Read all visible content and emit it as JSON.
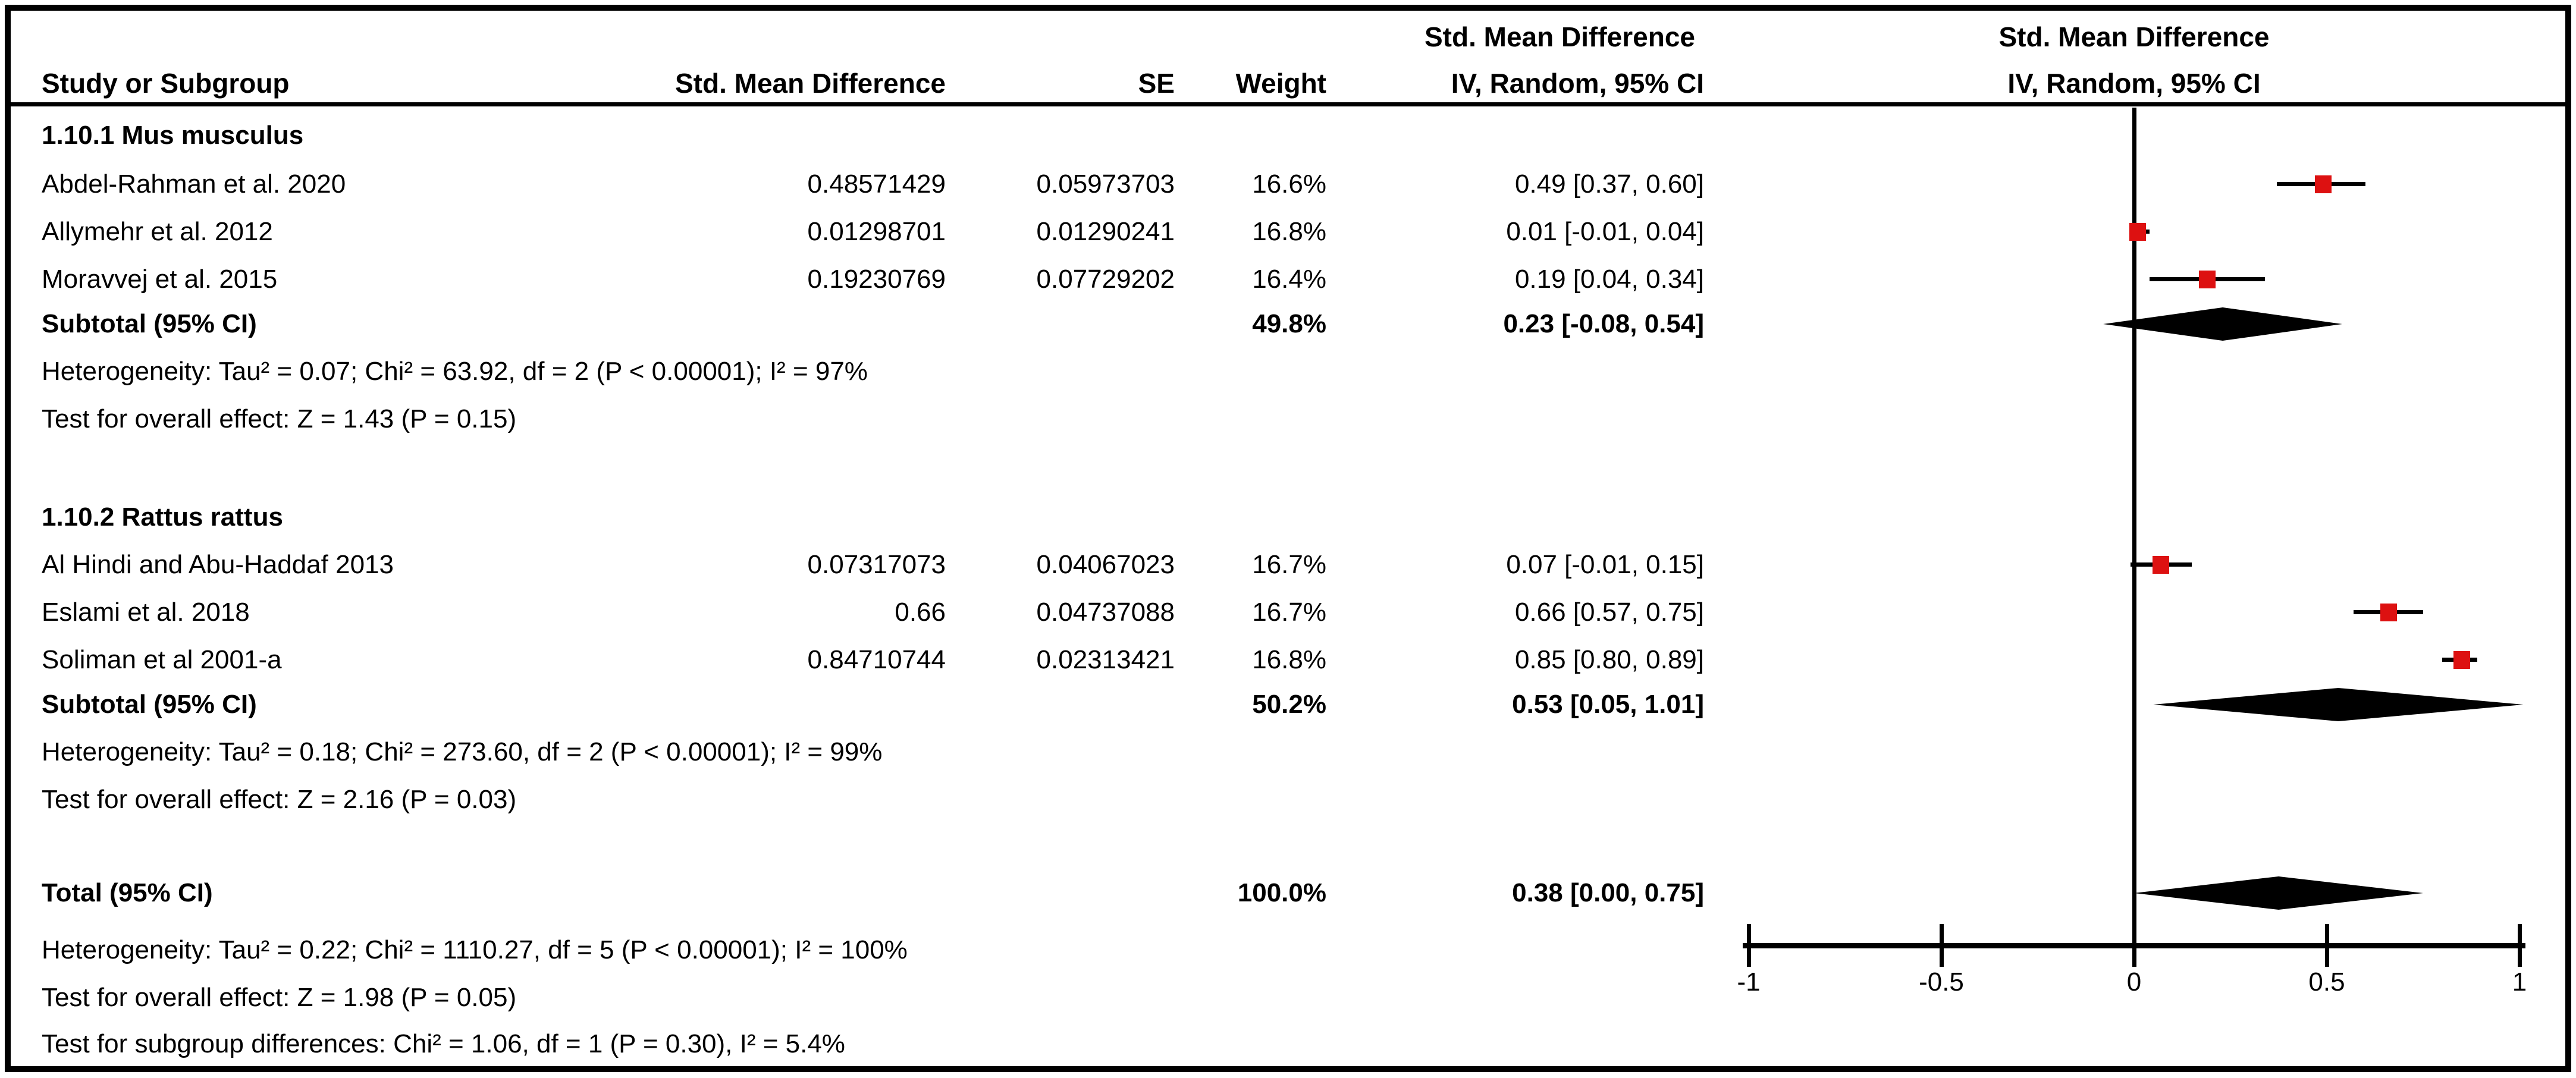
{
  "chart_data": {
    "type": "forest",
    "effect_measure": "Std. Mean Difference",
    "model": "IV, Random, 95% CI",
    "marker_color": "#DD1111",
    "diamond_color": "#000000",
    "columns": {
      "study": "Study or Subgroup",
      "smd": "Std. Mean Difference",
      "se": "SE",
      "weight": "Weight",
      "ci": "IV, Random, 95% CI",
      "ci_header_line1": "Std. Mean Difference",
      "plot_header_line1": "Std. Mean Difference",
      "plot_header_line2": "IV, Random, 95% CI"
    },
    "axis": {
      "xmin": -1,
      "xmax": 1,
      "tick_values": [
        -1,
        -0.5,
        0,
        0.5,
        1
      ],
      "ticks": [
        "-1",
        "-0.5",
        "0",
        "0.5",
        "1"
      ]
    },
    "groups": [
      {
        "label": "1.10.1 Mus musculus",
        "studies": [
          {
            "name": "Abdel-Rahman et al. 2020",
            "smd": "0.48571429",
            "se": "0.05973703",
            "weight": "16.6%",
            "ci": "0.49 [0.37, 0.60]",
            "est": 0.49,
            "lo": 0.37,
            "hi": 0.6
          },
          {
            "name": "Allymehr et al. 2012",
            "smd": "0.01298701",
            "se": "0.01290241",
            "weight": "16.8%",
            "ci": "0.01 [-0.01, 0.04]",
            "est": 0.01,
            "lo": -0.01,
            "hi": 0.04
          },
          {
            "name": "Moravvej et al. 2015",
            "smd": "0.19230769",
            "se": "0.07729202",
            "weight": "16.4%",
            "ci": "0.19 [0.04, 0.34]",
            "est": 0.19,
            "lo": 0.04,
            "hi": 0.34
          }
        ],
        "subtotal": {
          "label": "Subtotal (95% CI)",
          "weight": "49.8%",
          "ci": "0.23 [-0.08, 0.54]",
          "est": 0.23,
          "lo": -0.08,
          "hi": 0.54
        },
        "heterogeneity": "Heterogeneity: Tau² = 0.07; Chi² = 63.92, df = 2 (P < 0.00001); I² = 97%",
        "overall_effect": "Test for overall effect: Z = 1.43 (P = 0.15)"
      },
      {
        "label": "1.10.2 Rattus rattus",
        "studies": [
          {
            "name": "Al Hindi and Abu-Haddaf 2013",
            "smd": "0.07317073",
            "se": "0.04067023",
            "weight": "16.7%",
            "ci": "0.07 [-0.01, 0.15]",
            "est": 0.07,
            "lo": -0.01,
            "hi": 0.15
          },
          {
            "name": "Eslami et al. 2018",
            "smd": "0.66",
            "se": "0.04737088",
            "weight": "16.7%",
            "ci": "0.66 [0.57, 0.75]",
            "est": 0.66,
            "lo": 0.57,
            "hi": 0.75
          },
          {
            "name": "Soliman et al 2001-a",
            "smd": "0.84710744",
            "se": "0.02313421",
            "weight": "16.8%",
            "ci": "0.85 [0.80, 0.89]",
            "est": 0.85,
            "lo": 0.8,
            "hi": 0.89
          }
        ],
        "subtotal": {
          "label": "Subtotal (95% CI)",
          "weight": "50.2%",
          "ci": "0.53 [0.05, 1.01]",
          "est": 0.53,
          "lo": 0.05,
          "hi": 1.01
        },
        "heterogeneity": "Heterogeneity: Tau² = 0.18; Chi² = 273.60, df = 2 (P < 0.00001); I² = 99%",
        "overall_effect": "Test for overall effect: Z = 2.16 (P = 0.03)"
      }
    ],
    "total": {
      "label": "Total (95% CI)",
      "weight": "100.0%",
      "ci": "0.38 [0.00, 0.75]",
      "est": 0.38,
      "lo": 0.0,
      "hi": 0.75
    },
    "total_heterogeneity": "Heterogeneity: Tau² = 0.22; Chi² = 1110.27, df = 5 (P < 0.00001); I² = 100%",
    "total_overall_effect": "Test for overall effect: Z = 1.98 (P = 0.05)",
    "subgroup_differences": "Test for subgroup differences: Chi² = 1.06, df = 1 (P = 0.30), I² = 5.4%"
  }
}
